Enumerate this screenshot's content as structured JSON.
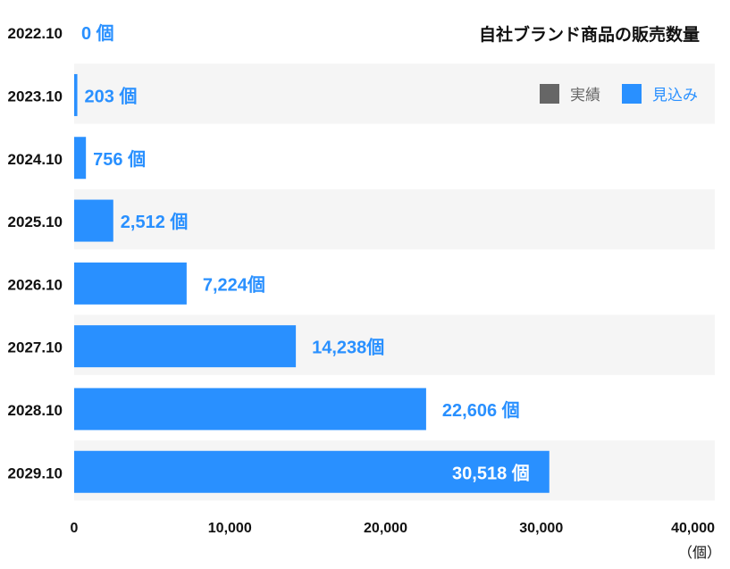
{
  "chart_data": {
    "type": "bar",
    "orientation": "horizontal",
    "title": "自社ブランド商品の販売数量",
    "categories": [
      "2022.10",
      "2023.10",
      "2024.10",
      "2025.10",
      "2026.10",
      "2027.10",
      "2028.10",
      "2029.10"
    ],
    "values": [
      0,
      203,
      756,
      2512,
      7224,
      14238,
      22606,
      30518
    ],
    "data_labels": [
      "0 個",
      "203 個",
      "756 個",
      "2,512 個",
      "7,224個",
      "14,238個",
      "22,606 個",
      "30,518 個"
    ],
    "xlim": [
      0,
      40000
    ],
    "xticks": [
      0,
      10000,
      20000,
      30000,
      40000
    ],
    "xtick_labels": [
      "0",
      "10,000",
      "20,000",
      "30,000",
      "40,000"
    ],
    "xlabel": "（個）",
    "legend": [
      {
        "label": "実績",
        "color": "#666666"
      },
      {
        "label": "見込み",
        "color": "#2990ff"
      }
    ],
    "legend_position": "top-right",
    "bar_color": "#2990ff",
    "stripe_color": "#f5f5f5"
  }
}
